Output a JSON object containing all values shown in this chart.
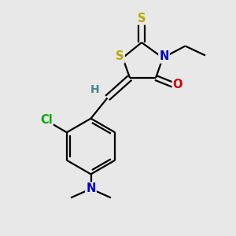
{
  "background_color": "#e8e8e8",
  "atom_colors": {
    "S": "#b8a800",
    "N": "#0000cc",
    "O": "#cc0000",
    "Cl": "#00aa00",
    "H": "#448888",
    "C": "#000000"
  },
  "figsize": [
    3.0,
    3.0
  ],
  "dpi": 100,
  "lw": 1.6,
  "fs": 10.5
}
